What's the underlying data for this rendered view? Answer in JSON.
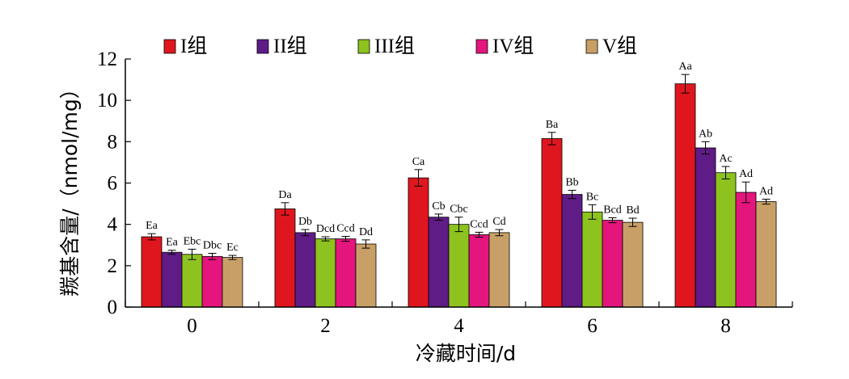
{
  "chart_data": {
    "type": "bar",
    "title": "",
    "xlabel": "冷藏时间/d",
    "ylabel": "羰基含量/（nmol/mg）",
    "categories": [
      "0",
      "2",
      "4",
      "6",
      "8"
    ],
    "ylim": [
      0,
      12
    ],
    "yticks": [
      "0",
      "2",
      "4",
      "6",
      "8",
      "10",
      "12"
    ],
    "grid": false,
    "legend_position": "top",
    "series": [
      {
        "name": "I组",
        "color": "#e0161e",
        "values": [
          3.4,
          4.75,
          6.25,
          8.15,
          10.8
        ],
        "errors": [
          0.15,
          0.3,
          0.4,
          0.3,
          0.45
        ],
        "labels": [
          "Ea",
          "Da",
          "Ca",
          "Ba",
          "Aa"
        ]
      },
      {
        "name": "II组",
        "color": "#5f1c86",
        "values": [
          2.65,
          3.6,
          4.35,
          5.45,
          7.7
        ],
        "errors": [
          0.1,
          0.15,
          0.15,
          0.2,
          0.3
        ],
        "labels": [
          "Ea",
          "Db",
          "Cb",
          "Bb",
          "Ab"
        ]
      },
      {
        "name": "III组",
        "color": "#8dc21f",
        "values": [
          2.55,
          3.3,
          4.0,
          4.6,
          6.5
        ],
        "errors": [
          0.25,
          0.1,
          0.35,
          0.35,
          0.3
        ],
        "labels": [
          "Ebc",
          "Dcd",
          "Cbc",
          "Bc",
          "Ac"
        ]
      },
      {
        "name": "IV组",
        "color": "#e4157d",
        "values": [
          2.45,
          3.3,
          3.5,
          4.2,
          5.55
        ],
        "errors": [
          0.15,
          0.12,
          0.12,
          0.12,
          0.5
        ],
        "labels": [
          "Dbc",
          "Ccd",
          "Ccd",
          "Bcd",
          "Ad"
        ]
      },
      {
        "name": "V组",
        "color": "#c8a067",
        "values": [
          2.4,
          3.05,
          3.6,
          4.1,
          5.1
        ],
        "errors": [
          0.1,
          0.2,
          0.15,
          0.2,
          0.12
        ],
        "labels": [
          "Ec",
          "Dd",
          "Cd",
          "Bd",
          "Ad"
        ]
      }
    ]
  }
}
